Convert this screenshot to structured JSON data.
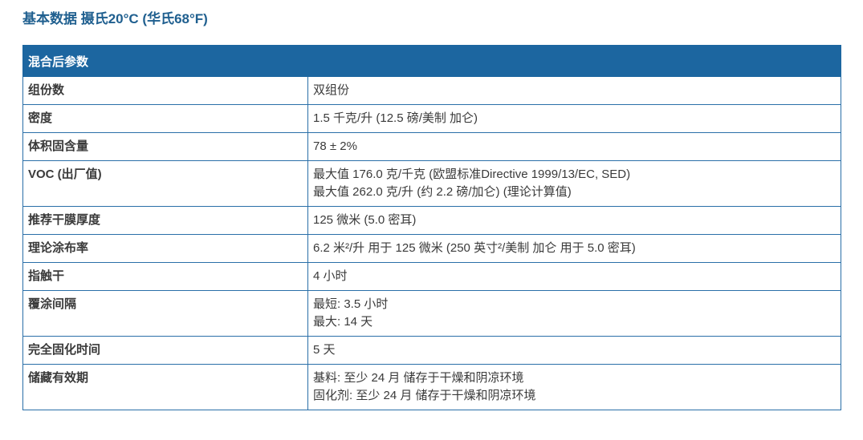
{
  "title": "基本数据 摄氏20°C (华氏68°F)",
  "table": {
    "header": "混合后参数",
    "rows": [
      {
        "label": "组份数",
        "values": [
          "双组份"
        ]
      },
      {
        "label": "密度",
        "values": [
          "1.5 千克/升 (12.5 磅/美制 加仑)"
        ]
      },
      {
        "label": "体积固含量",
        "values": [
          "78 ± 2%"
        ]
      },
      {
        "label": "VOC (出厂值)",
        "values": [
          "最大值 176.0 克/千克 (欧盟标准Directive 1999/13/EC, SED)",
          "最大值 262.0 克/升 (约 2.2 磅/加仑) (理论计算值)"
        ]
      },
      {
        "label": "推荐干膜厚度",
        "values": [
          "125 微米 (5.0 密耳)"
        ]
      },
      {
        "label": "理论涂布率",
        "values": [
          "6.2 米²/升 用于 125 微米 (250 英寸²/美制 加仑 用于 5.0 密耳)"
        ]
      },
      {
        "label": "指触干",
        "values": [
          "4 小时"
        ]
      },
      {
        "label": "覆涂间隔",
        "values": [
          "最短: 3.5 小时",
          "最大: 14 天"
        ]
      },
      {
        "label": "完全固化时间",
        "values": [
          "5 天"
        ]
      },
      {
        "label": "储藏有效期",
        "values": [
          "基料: 至少 24 月 储存于干燥和阴凉环境",
          "固化剂: 至少 24 月 储存于干燥和阴凉环境"
        ]
      }
    ]
  },
  "colors": {
    "title": "#1f5f8f",
    "header_bg": "#1c66a0",
    "border": "#2a6fa8"
  }
}
